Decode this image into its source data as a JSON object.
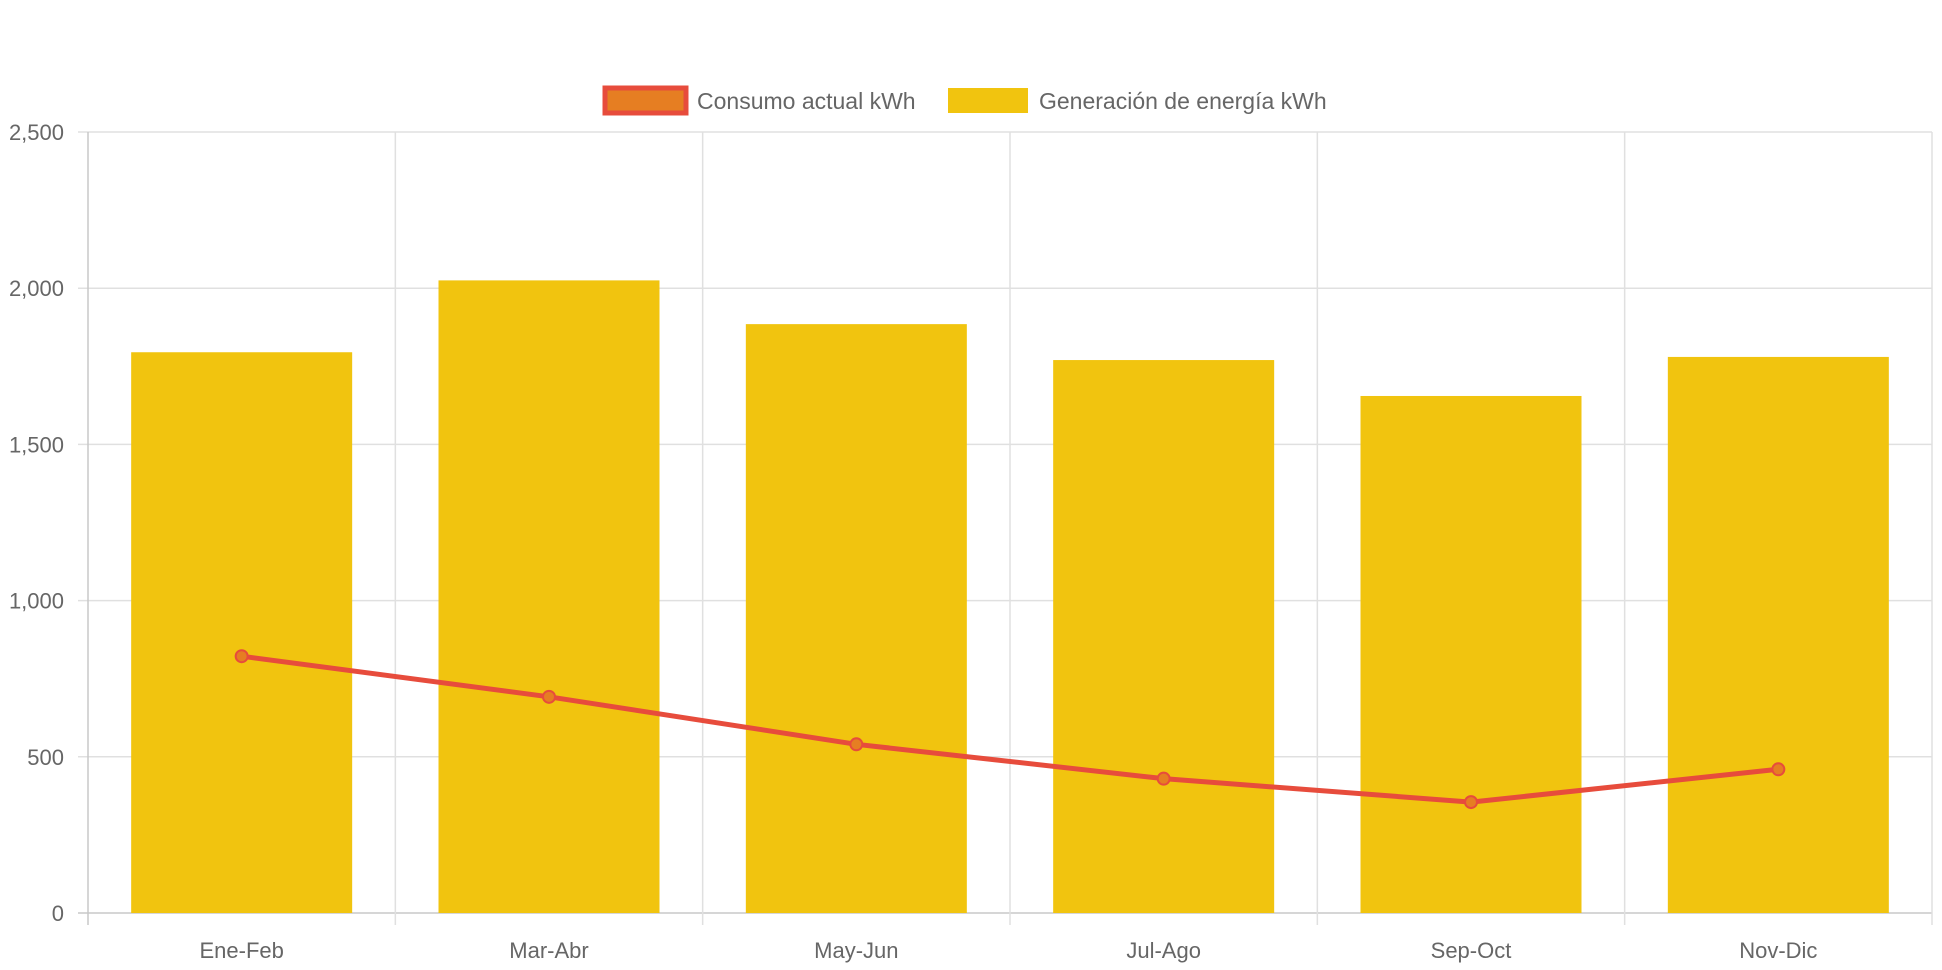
{
  "chart_data": {
    "type": "bar",
    "categories": [
      "Ene-Feb",
      "Mar-Abr",
      "May-Jun",
      "Jul-Ago",
      "Sep-Oct",
      "Nov-Dic"
    ],
    "series": [
      {
        "name": "Consumo actual kWh",
        "type": "line",
        "values": [
          822,
          692,
          540,
          430,
          355,
          460
        ],
        "color": "#e74c3c",
        "point_color": "#e67e22"
      },
      {
        "name": "Generación de energía kWh",
        "type": "bar",
        "values": [
          1795,
          2025,
          1885,
          1770,
          1655,
          1780
        ],
        "color": "#f1c40f"
      }
    ],
    "title": "",
    "xlabel": "",
    "ylabel": "",
    "ylim": [
      0,
      2500
    ],
    "yticks": [
      "0",
      "500",
      "1,000",
      "1,500",
      "2,000",
      "2,500"
    ],
    "ytick_values": [
      0,
      500,
      1000,
      1500,
      2000,
      2500
    ],
    "grid": true,
    "legend_position": "top-center"
  }
}
